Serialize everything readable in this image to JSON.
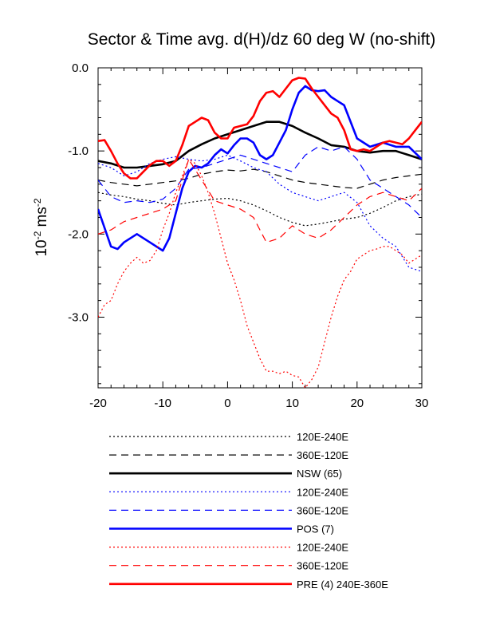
{
  "chart_data": {
    "type": "line",
    "title": "Sector & Time avg. d(H)/dz 60 deg W (no-shift)",
    "ylabel_base": "10",
    "ylabel_exp": "-2",
    "ylabel_unit": " ms",
    "ylabel_unit_exp": "-2",
    "xlim": [
      -20,
      30
    ],
    "ylim": [
      -3.85,
      0.0
    ],
    "x_ticks": [
      -20,
      -10,
      0,
      10,
      20,
      30
    ],
    "x_tick_labels": [
      "-20",
      "-10",
      "0",
      "10",
      "20",
      "30"
    ],
    "y_ticks": [
      0.0,
      -1.0,
      -2.0,
      -3.0
    ],
    "y_tick_labels": [
      "0.0",
      "-1.0",
      "-2.0",
      "-3.0"
    ],
    "grid": false,
    "legend_position": "below",
    "series": [
      {
        "name": "120E-240E",
        "color": "#000000",
        "style": "dotted",
        "width": 1.2,
        "x": [
          -20,
          -18,
          -16,
          -14,
          -12,
          -10,
          -8,
          -6,
          -4,
          -2,
          0,
          2,
          4,
          6,
          8,
          10,
          12,
          14,
          16,
          18,
          20,
          22,
          24,
          26,
          28,
          30
        ],
        "y": [
          -1.5,
          -1.53,
          -1.55,
          -1.58,
          -1.6,
          -1.63,
          -1.65,
          -1.62,
          -1.6,
          -1.58,
          -1.57,
          -1.6,
          -1.65,
          -1.72,
          -1.8,
          -1.86,
          -1.9,
          -1.88,
          -1.85,
          -1.82,
          -1.8,
          -1.75,
          -1.68,
          -1.6,
          -1.55,
          -1.52
        ]
      },
      {
        "name": "360E-120E",
        "color": "#000000",
        "style": "dashed",
        "width": 1.2,
        "x": [
          -20,
          -18,
          -16,
          -14,
          -12,
          -10,
          -8,
          -6,
          -4,
          -2,
          0,
          2,
          4,
          6,
          8,
          10,
          12,
          14,
          16,
          18,
          20,
          22,
          24,
          26,
          28,
          30
        ],
        "y": [
          -1.35,
          -1.38,
          -1.4,
          -1.42,
          -1.4,
          -1.38,
          -1.36,
          -1.33,
          -1.28,
          -1.25,
          -1.23,
          -1.24,
          -1.22,
          -1.25,
          -1.3,
          -1.35,
          -1.38,
          -1.4,
          -1.42,
          -1.44,
          -1.45,
          -1.4,
          -1.35,
          -1.32,
          -1.3,
          -1.28
        ]
      },
      {
        "name": "NSW (65)",
        "color": "#000000",
        "style": "solid",
        "width": 2.6,
        "x": [
          -20,
          -18,
          -16,
          -14,
          -12,
          -10,
          -8,
          -6,
          -4,
          -2,
          0,
          2,
          4,
          6,
          8,
          10,
          12,
          14,
          16,
          18,
          20,
          22,
          24,
          26,
          28,
          30
        ],
        "y": [
          -1.12,
          -1.15,
          -1.2,
          -1.2,
          -1.18,
          -1.16,
          -1.12,
          -1.0,
          -0.92,
          -0.85,
          -0.8,
          -0.75,
          -0.7,
          -0.65,
          -0.65,
          -0.7,
          -0.78,
          -0.85,
          -0.93,
          -0.95,
          -1.0,
          -1.02,
          -1.0,
          -1.0,
          -1.05,
          -1.1
        ]
      },
      {
        "name": "120E-240E",
        "color": "#0000ff",
        "style": "dotted",
        "width": 1.2,
        "x": [
          -20,
          -18,
          -16,
          -14,
          -12,
          -10,
          -8,
          -6,
          -4,
          -2,
          0,
          2,
          4,
          6,
          8,
          10,
          12,
          14,
          16,
          18,
          20,
          22,
          24,
          26,
          28,
          30
        ],
        "y": [
          -1.15,
          -1.2,
          -1.3,
          -1.25,
          -1.15,
          -1.1,
          -1.07,
          -1.1,
          -1.12,
          -1.1,
          -1.05,
          -1.12,
          -1.2,
          -1.25,
          -1.4,
          -1.5,
          -1.55,
          -1.6,
          -1.55,
          -1.5,
          -1.62,
          -1.9,
          -2.05,
          -2.15,
          -2.4,
          -2.45
        ]
      },
      {
        "name": "360E-120E",
        "color": "#0000ff",
        "style": "dashed",
        "width": 1.2,
        "x": [
          -20,
          -18,
          -16,
          -14,
          -12,
          -10,
          -8,
          -6,
          -4,
          -2,
          0,
          2,
          4,
          6,
          8,
          10,
          12,
          14,
          16,
          18,
          20,
          22,
          24,
          26,
          28,
          30
        ],
        "y": [
          -1.35,
          -1.55,
          -1.62,
          -1.6,
          -1.62,
          -1.58,
          -1.45,
          -1.22,
          -1.2,
          -1.15,
          -1.1,
          -1.05,
          -1.1,
          -1.15,
          -1.2,
          -1.25,
          -1.05,
          -0.95,
          -1.0,
          -0.95,
          -1.1,
          -1.35,
          -1.45,
          -1.55,
          -1.65,
          -1.8
        ]
      },
      {
        "name": "POS (7)",
        "color": "#0000ff",
        "style": "solid",
        "width": 2.6,
        "x": [
          -20,
          -18,
          -17,
          -16,
          -14,
          -12,
          -10,
          -9,
          -8,
          -7,
          -6,
          -5,
          -4,
          -3,
          -2,
          -1,
          0,
          1,
          2,
          3,
          4,
          5,
          6,
          7,
          8,
          9,
          10,
          11,
          12,
          13,
          14,
          15,
          16,
          17,
          18,
          20,
          22,
          24,
          26,
          28,
          30
        ],
        "y": [
          -1.7,
          -2.15,
          -2.18,
          -2.1,
          -2.0,
          -2.1,
          -2.2,
          -2.05,
          -1.75,
          -1.45,
          -1.25,
          -1.18,
          -1.2,
          -1.15,
          -1.05,
          -0.98,
          -1.03,
          -0.93,
          -0.85,
          -0.85,
          -0.9,
          -1.05,
          -1.1,
          -1.05,
          -0.9,
          -0.75,
          -0.5,
          -0.3,
          -0.22,
          -0.27,
          -0.28,
          -0.27,
          -0.35,
          -0.4,
          -0.45,
          -0.85,
          -0.95,
          -0.9,
          -0.95,
          -0.95,
          -1.1
        ]
      },
      {
        "name": "120E-240E",
        "color": "#ff0000",
        "style": "dotted",
        "width": 1.2,
        "x": [
          -20,
          -19,
          -18,
          -17,
          -16,
          -15,
          -14,
          -13,
          -12,
          -11,
          -10,
          -9,
          -8,
          -7,
          -6,
          -5,
          -4,
          -3,
          -2,
          -1,
          0,
          1,
          2,
          3,
          4,
          5,
          6,
          7,
          8,
          9,
          10,
          11,
          12,
          13,
          14,
          15,
          16,
          17,
          18,
          19,
          20,
          21,
          22,
          23,
          24,
          25,
          26,
          27,
          28,
          29,
          30
        ],
        "y": [
          -3.0,
          -2.85,
          -2.8,
          -2.6,
          -2.45,
          -2.35,
          -2.28,
          -2.35,
          -2.32,
          -2.2,
          -1.95,
          -1.75,
          -1.5,
          -1.3,
          -1.1,
          -1.15,
          -1.3,
          -1.5,
          -1.75,
          -2.05,
          -2.35,
          -2.55,
          -2.8,
          -3.1,
          -3.3,
          -3.5,
          -3.65,
          -3.65,
          -3.68,
          -3.65,
          -3.7,
          -3.72,
          -3.85,
          -3.75,
          -3.6,
          -3.3,
          -3.0,
          -2.75,
          -2.55,
          -2.45,
          -2.3,
          -2.25,
          -2.2,
          -2.18,
          -2.15,
          -2.15,
          -2.2,
          -2.25,
          -2.35,
          -2.3,
          -2.25
        ]
      },
      {
        "name": "360E-120E",
        "color": "#ff0000",
        "style": "dashed",
        "width": 1.2,
        "x": [
          -20,
          -18,
          -16,
          -14,
          -12,
          -10,
          -8,
          -6,
          -4,
          -2,
          0,
          2,
          4,
          6,
          8,
          10,
          12,
          14,
          16,
          18,
          20,
          22,
          24,
          26,
          28,
          30
        ],
        "y": [
          -2.0,
          -1.95,
          -1.85,
          -1.8,
          -1.75,
          -1.7,
          -1.6,
          -1.1,
          -1.35,
          -1.6,
          -1.65,
          -1.7,
          -1.8,
          -2.1,
          -2.05,
          -1.9,
          -2.0,
          -2.05,
          -1.95,
          -1.8,
          -1.65,
          -1.55,
          -1.5,
          -1.55,
          -1.6,
          -1.45
        ]
      },
      {
        "name": "PRE (4) 240E-360E",
        "color": "#ff0000",
        "style": "solid",
        "width": 2.6,
        "x": [
          -20,
          -19,
          -18,
          -17,
          -16,
          -15,
          -14,
          -13,
          -12,
          -11,
          -10,
          -9,
          -8,
          -7,
          -6,
          -5,
          -4,
          -3,
          -2,
          -1,
          0,
          1,
          2,
          3,
          4,
          5,
          6,
          7,
          8,
          9,
          10,
          11,
          12,
          13,
          14,
          15,
          16,
          17,
          18,
          19,
          20,
          21,
          22,
          23,
          24,
          25,
          26,
          27,
          28,
          29,
          30
        ],
        "y": [
          -0.88,
          -0.87,
          -1.0,
          -1.15,
          -1.27,
          -1.33,
          -1.33,
          -1.25,
          -1.17,
          -1.12,
          -1.12,
          -1.18,
          -1.12,
          -0.93,
          -0.7,
          -0.65,
          -0.6,
          -0.63,
          -0.78,
          -0.85,
          -0.85,
          -0.72,
          -0.7,
          -0.68,
          -0.58,
          -0.4,
          -0.3,
          -0.28,
          -0.35,
          -0.25,
          -0.15,
          -0.12,
          -0.13,
          -0.25,
          -0.35,
          -0.45,
          -0.55,
          -0.6,
          -0.75,
          -0.98,
          -1.0,
          -0.98,
          -1.0,
          -0.95,
          -0.9,
          -0.88,
          -0.9,
          -0.92,
          -0.85,
          -0.75,
          -0.65
        ]
      }
    ]
  }
}
